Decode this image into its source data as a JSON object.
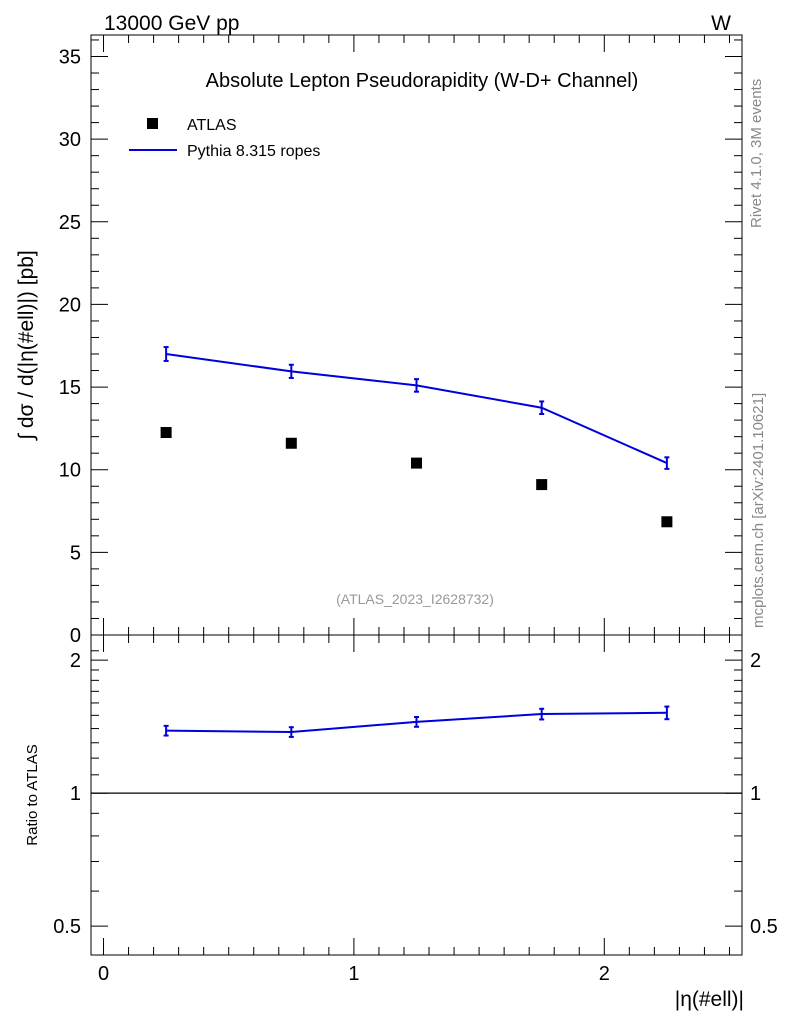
{
  "header": {
    "left": "13000 GeV pp",
    "right": "W"
  },
  "side_labels": {
    "rivet": "Rivet 4.1.0,  3M events",
    "mcplots": "mcplots.cern.ch [arXiv:2401.10621]"
  },
  "chart_data": [
    {
      "type": "scatter",
      "panel": "main",
      "title": "Absolute Lepton Pseudorapidity (W-D+ Channel)",
      "watermark": "(ATLAS_2023_I2628732)",
      "ylabel": "∫ dσ / d(|η(#ell)|) [pb]",
      "xlabel": "|η(#ell)|",
      "xlim": [
        -0.05,
        2.55
      ],
      "ylim": [
        0,
        36.3
      ],
      "y_ticks": [
        "0",
        "5",
        "10",
        "15",
        "20",
        "25",
        "30",
        "35"
      ],
      "legend": {
        "placement": "top-left",
        "entries": [
          "ATLAS",
          "Pythia 8.315 ropes"
        ]
      },
      "series": [
        {
          "name": "ATLAS",
          "style": "markers",
          "color": "#000000",
          "x": [
            0.25,
            0.75,
            1.25,
            1.75,
            2.25
          ],
          "y": [
            12.25,
            11.6,
            10.4,
            9.1,
            6.85
          ]
        },
        {
          "name": "Pythia 8.315 ropes",
          "style": "line",
          "color": "#0000dd",
          "x": [
            0.25,
            0.75,
            1.25,
            1.75,
            2.25
          ],
          "y": [
            17.0,
            15.95,
            15.1,
            13.75,
            10.4
          ],
          "yerr": [
            0.42,
            0.4,
            0.38,
            0.38,
            0.35
          ]
        }
      ]
    },
    {
      "type": "line",
      "panel": "ratio",
      "ylabel": "Ratio to ATLAS",
      "xlabel": "|η(#ell)|",
      "xlim": [
        -0.05,
        2.55
      ],
      "yscale": "log",
      "ylim": [
        0.43,
        2.28
      ],
      "y_ticks": [
        "0.5",
        "1",
        "2"
      ],
      "x_ticks": [
        "0",
        "1",
        "2"
      ],
      "reference": 1,
      "series": [
        {
          "name": "Pythia 8.315 ropes",
          "color": "#0000dd",
          "x": [
            0.25,
            0.75,
            1.25,
            1.75,
            2.25
          ],
          "y": [
            1.385,
            1.375,
            1.45,
            1.51,
            1.52
          ],
          "yerr": [
            0.035,
            0.035,
            0.037,
            0.042,
            0.05
          ]
        }
      ]
    }
  ]
}
